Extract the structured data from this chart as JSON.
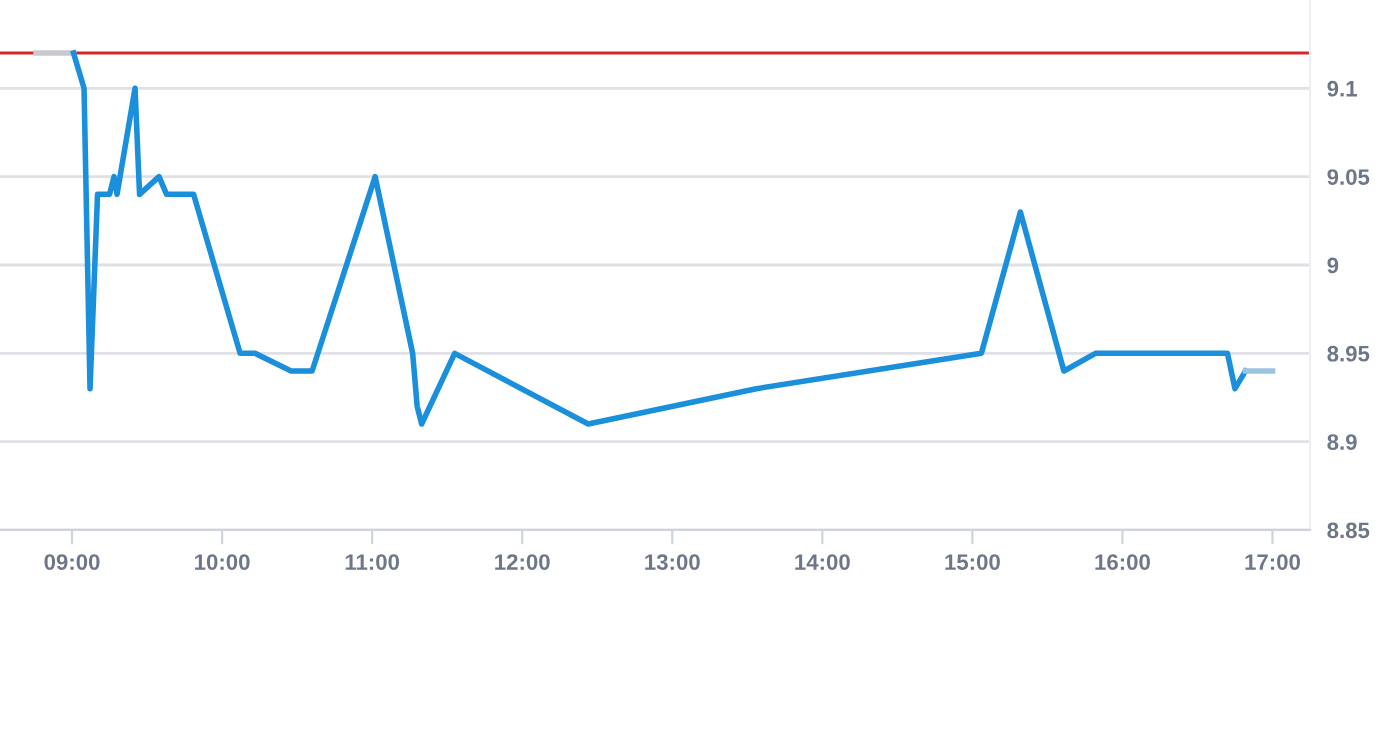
{
  "chart_data": {
    "type": "line",
    "xlim": [
      8.52,
      17.25
    ],
    "xticks": [
      {
        "value": 9,
        "label": "09:00"
      },
      {
        "value": 10,
        "label": "10:00"
      },
      {
        "value": 11,
        "label": "11:00"
      },
      {
        "value": 12,
        "label": "12:00"
      },
      {
        "value": 13,
        "label": "13:00"
      },
      {
        "value": 14,
        "label": "14:00"
      },
      {
        "value": 15,
        "label": "15:00"
      },
      {
        "value": 16,
        "label": "16:00"
      },
      {
        "value": 17,
        "label": "17:00"
      }
    ],
    "ylim": [
      8.85,
      9.15
    ],
    "yticks": [
      8.85,
      8.9,
      8.95,
      9,
      9.05,
      9.1
    ],
    "grid": "y",
    "marker": "none",
    "ref_lines": [
      {
        "axis": "y",
        "value": 9.12,
        "color": "#d62728"
      }
    ],
    "series": [
      {
        "color": "#c8c8d0",
        "x": [
          8.76,
          9.01
        ],
        "values": [
          9.12,
          9.12
        ]
      },
      {
        "color": "#1a8fdc",
        "x": [
          9.01,
          9.08,
          9.12,
          9.17,
          9.25,
          9.28,
          9.3,
          9.42,
          9.45,
          9.58,
          9.63,
          9.81,
          10.12,
          10.22,
          10.46,
          10.6,
          11.02,
          11.27,
          11.3,
          11.33,
          11.55,
          12.44,
          13.56,
          15.06,
          15.32,
          15.61,
          15.82,
          16.7,
          16.75,
          16.82
        ],
        "values": [
          9.12,
          9.1,
          8.93,
          9.04,
          9.04,
          9.05,
          9.04,
          9.1,
          9.04,
          9.05,
          9.04,
          9.04,
          8.95,
          8.95,
          8.94,
          8.94,
          9.05,
          8.95,
          8.92,
          8.91,
          8.95,
          8.91,
          8.93,
          8.95,
          9.03,
          8.94,
          8.95,
          8.95,
          8.93,
          8.94
        ]
      },
      {
        "color": "#9cc3e0",
        "x": [
          16.82,
          17.0
        ],
        "values": [
          8.94,
          8.94
        ]
      }
    ]
  }
}
